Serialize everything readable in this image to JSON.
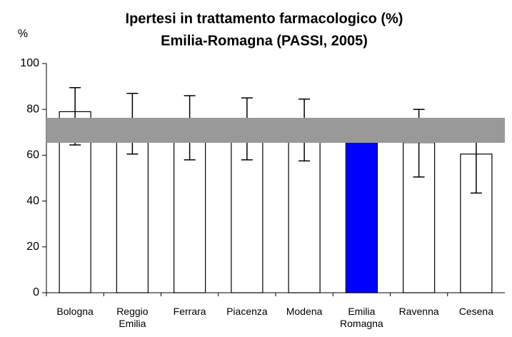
{
  "chart_data": {
    "type": "bar",
    "title": [
      "Ipertesi in trattamento farmacologico (%)",
      "Emilia-Romagna (PASSI, 2005)"
    ],
    "y_label": "%",
    "categories": [
      "Bologna",
      "Reggio Emilia",
      "Ferrara",
      "Piacenza",
      "Modena",
      "Emilia Romagna",
      "Ravenna",
      "Cesena"
    ],
    "values": [
      79,
      74,
      72,
      71.5,
      71,
      71,
      65.5,
      60.5
    ],
    "ci_low": [
      64.5,
      60.5,
      58,
      58,
      57.5,
      null,
      50.5,
      43.5
    ],
    "ci_high": [
      89.5,
      87,
      86,
      85,
      84.5,
      null,
      80,
      76
    ],
    "colors": [
      "#ffffff",
      "#ffffff",
      "#ffffff",
      "#ffffff",
      "#ffffff",
      "#0000ff",
      "#ffffff",
      "#ffffff"
    ],
    "ylim": [
      0,
      100
    ],
    "yticks": [
      0,
      20,
      40,
      60,
      80,
      100
    ]
  }
}
